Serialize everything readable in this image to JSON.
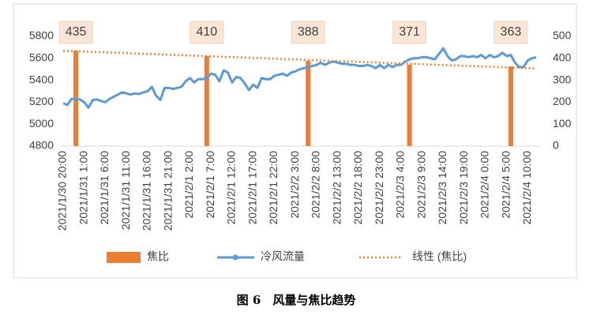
{
  "chart_data": {
    "type": "bar-line",
    "caption": "图 6　风量与焦比趋势",
    "categories": [
      "2021/1/30 20:00",
      null,
      null,
      null,
      null,
      "2021/1/31 1:00",
      null,
      null,
      null,
      null,
      "2021/1/31 6:00",
      null,
      null,
      null,
      null,
      "2021/1/31 11:00",
      null,
      null,
      null,
      null,
      "2021/1/31 16:00",
      null,
      null,
      null,
      null,
      "2021/1/31 21:00",
      null,
      null,
      null,
      null,
      "2021/2/1 2:00",
      null,
      null,
      null,
      null,
      "2021/2/1 7:00",
      null,
      null,
      null,
      null,
      "2021/2/1 12:00",
      null,
      null,
      null,
      null,
      "2021/2/1 17:00",
      null,
      null,
      null,
      null,
      "2021/2/1 22:00",
      null,
      null,
      null,
      null,
      "2021/2/2 3:00",
      null,
      null,
      null,
      null,
      "2021/2/2 8:00",
      null,
      null,
      null,
      null,
      "2021/2/2 13:00",
      null,
      null,
      null,
      null,
      "2021/2/2 18:00",
      null,
      null,
      null,
      null,
      "2021/2/2 23:00",
      null,
      null,
      null,
      null,
      "2021/2/3 4:00",
      null,
      null,
      null,
      null,
      "2021/2/3 9:00",
      null,
      null,
      null,
      null,
      "2021/2/3 14:00",
      null,
      null,
      null,
      null,
      "2021/2/3 19:00",
      null,
      null,
      null,
      null,
      "2021/2/4 0:00",
      null,
      null,
      null,
      null,
      "2021/2/4 5:00",
      null,
      null,
      null,
      null,
      "2021/2/4 10:00",
      null,
      null
    ],
    "series": [
      {
        "name": "焦比",
        "type": "bar",
        "axis": "y2",
        "color": "#ed7d31",
        "values": [
          null,
          null,
          null,
          435,
          null,
          null,
          null,
          null,
          null,
          null,
          null,
          null,
          null,
          null,
          null,
          null,
          null,
          null,
          null,
          null,
          null,
          null,
          null,
          null,
          null,
          null,
          null,
          null,
          null,
          null,
          null,
          null,
          null,
          null,
          410,
          null,
          null,
          null,
          null,
          null,
          null,
          null,
          null,
          null,
          null,
          null,
          null,
          null,
          null,
          null,
          null,
          null,
          null,
          null,
          null,
          null,
          null,
          null,
          388,
          null,
          null,
          null,
          null,
          null,
          null,
          null,
          null,
          null,
          null,
          null,
          null,
          null,
          null,
          null,
          null,
          null,
          null,
          null,
          null,
          null,
          null,
          null,
          371,
          null,
          null,
          null,
          null,
          null,
          null,
          null,
          null,
          null,
          null,
          null,
          null,
          null,
          null,
          null,
          null,
          null,
          null,
          null,
          null,
          null,
          null,
          null,
          363,
          null,
          null,
          null,
          null,
          null,
          null
        ]
      },
      {
        "name": "冷风流量",
        "type": "line",
        "axis": "y",
        "color": "#5b9bd5",
        "values": [
          5190,
          5175,
          5230,
          5230,
          5225,
          5200,
          5150,
          5220,
          5225,
          5210,
          5200,
          5230,
          5250,
          5270,
          5290,
          5280,
          5270,
          5280,
          5275,
          5290,
          5300,
          5340,
          5260,
          5220,
          5330,
          5330,
          5320,
          5330,
          5340,
          5390,
          5420,
          5380,
          5410,
          5410,
          5420,
          5460,
          5450,
          5390,
          5490,
          5470,
          5380,
          5430,
          5420,
          5370,
          5310,
          5360,
          5330,
          5420,
          5410,
          5410,
          5440,
          5450,
          5460,
          5440,
          5470,
          5480,
          5500,
          5510,
          5520,
          5530,
          5540,
          5560,
          5540,
          5560,
          5570,
          5560,
          5550,
          5550,
          5540,
          5540,
          5530,
          5530,
          5540,
          5530,
          5510,
          5540,
          5510,
          5540,
          5520,
          5540,
          5540,
          5570,
          5590,
          5600,
          5600,
          5610,
          5610,
          5600,
          5590,
          5640,
          5690,
          5620,
          5580,
          5590,
          5620,
          5620,
          5610,
          5620,
          5610,
          5630,
          5600,
          5630,
          5610,
          5620,
          5650,
          5620,
          5630,
          5560,
          5520,
          5520,
          5580,
          5600,
          5610
        ]
      }
    ],
    "trendline": {
      "name": "线性 (焦比)",
      "color": "#ed7d31",
      "style": "dotted"
    },
    "ylim": [
      4800,
      5800
    ],
    "yticks": [
      4800,
      5000,
      5200,
      5400,
      5600,
      5800
    ],
    "y2lim": [
      0,
      500
    ],
    "y2ticks": [
      0,
      100,
      200,
      300,
      400,
      500
    ]
  }
}
